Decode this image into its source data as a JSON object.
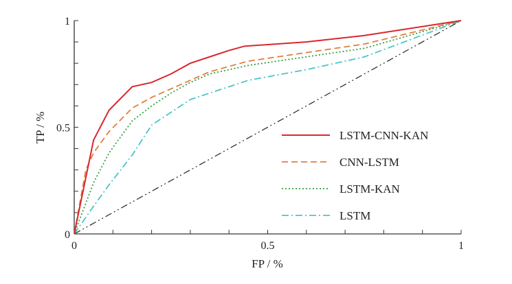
{
  "chart_data": {
    "type": "line",
    "title": "",
    "xlabel": "FP / %",
    "ylabel": "TP / %",
    "xlim": [
      0,
      1
    ],
    "ylim": [
      0,
      1
    ],
    "xticks": [
      {
        "v": 0,
        "label": "0"
      },
      {
        "v": 0.5,
        "label": "0.5"
      },
      {
        "v": 1,
        "label": "1"
      }
    ],
    "yticks": [
      {
        "v": 0,
        "label": "0"
      },
      {
        "v": 0.5,
        "label": "0.5"
      },
      {
        "v": 1,
        "label": "1"
      }
    ],
    "grid": false,
    "legend_position": "center-right",
    "reference_line": {
      "x": [
        0,
        1
      ],
      "y": [
        0,
        1
      ],
      "color": "#222222"
    },
    "series": [
      {
        "name": "LSTM-CNN-KAN",
        "color": "#d9262b",
        "style": "solid",
        "x": [
          0,
          0.05,
          0.09,
          0.15,
          0.2,
          0.25,
          0.3,
          0.35,
          0.4,
          0.42,
          0.44,
          0.6,
          0.75,
          1
        ],
        "y": [
          0,
          0.44,
          0.58,
          0.69,
          0.71,
          0.75,
          0.8,
          0.83,
          0.86,
          0.87,
          0.88,
          0.9,
          0.93,
          1
        ]
      },
      {
        "name": "CNN-LSTM",
        "color": "#e07f3e",
        "style": "dashed",
        "x": [
          0,
          0.03,
          0.05,
          0.09,
          0.15,
          0.2,
          0.25,
          0.3,
          0.35,
          0.45,
          0.6,
          0.75,
          1
        ],
        "y": [
          0,
          0.3,
          0.38,
          0.48,
          0.59,
          0.64,
          0.68,
          0.72,
          0.76,
          0.81,
          0.85,
          0.89,
          1
        ]
      },
      {
        "name": "LSTM-KAN",
        "color": "#2f9e3f",
        "style": "dotted",
        "x": [
          0,
          0.05,
          0.09,
          0.15,
          0.2,
          0.25,
          0.3,
          0.35,
          0.45,
          0.6,
          0.75,
          1
        ],
        "y": [
          0,
          0.24,
          0.38,
          0.53,
          0.6,
          0.66,
          0.71,
          0.75,
          0.79,
          0.83,
          0.87,
          1
        ]
      },
      {
        "name": "LSTM",
        "color": "#4cc3c9",
        "style": "dashdot",
        "x": [
          0,
          0.05,
          0.09,
          0.15,
          0.2,
          0.3,
          0.45,
          0.6,
          0.75,
          1
        ],
        "y": [
          0,
          0.13,
          0.23,
          0.37,
          0.51,
          0.63,
          0.72,
          0.77,
          0.83,
          1
        ]
      }
    ]
  }
}
